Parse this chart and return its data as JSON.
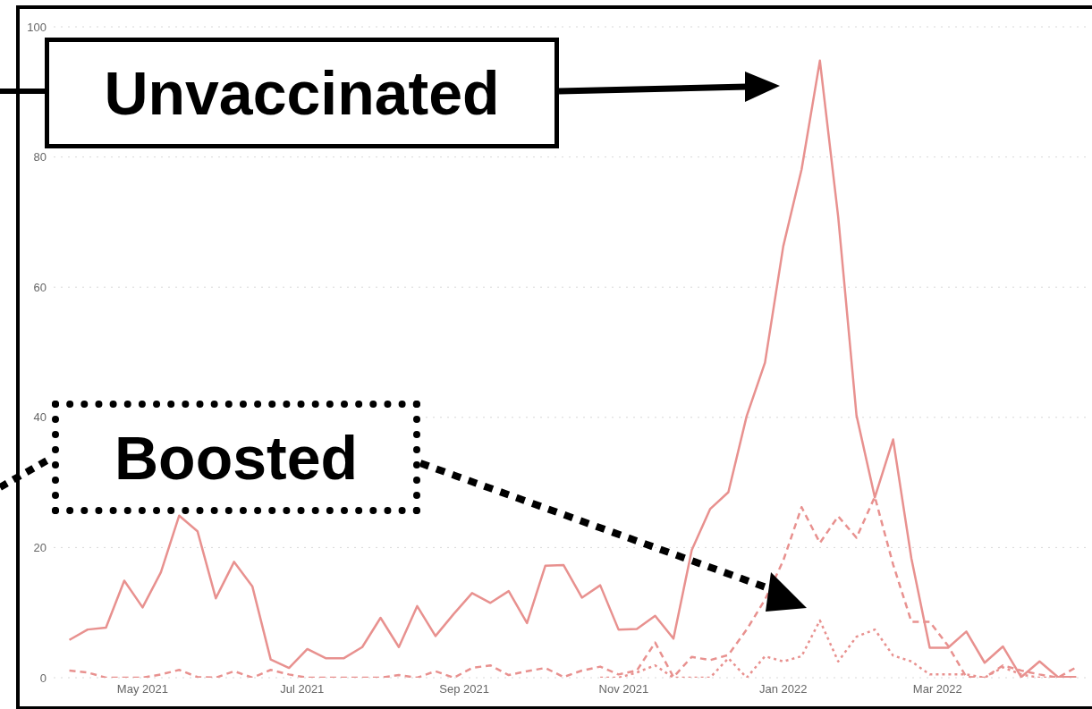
{
  "chart_data": {
    "type": "line",
    "x": [
      "2021-04-03",
      "2021-04-10",
      "2021-04-17",
      "2021-04-24",
      "2021-05-01",
      "2021-05-08",
      "2021-05-15",
      "2021-05-22",
      "2021-05-29",
      "2021-06-05",
      "2021-06-12",
      "2021-06-19",
      "2021-06-26",
      "2021-07-03",
      "2021-07-10",
      "2021-07-17",
      "2021-07-24",
      "2021-07-31",
      "2021-08-07",
      "2021-08-14",
      "2021-08-21",
      "2021-08-28",
      "2021-09-04",
      "2021-09-11",
      "2021-09-18",
      "2021-09-25",
      "2021-10-02",
      "2021-10-09",
      "2021-10-16",
      "2021-10-23",
      "2021-10-30",
      "2021-11-06",
      "2021-11-13",
      "2021-11-20",
      "2021-11-27",
      "2021-12-04",
      "2021-12-11",
      "2021-12-18",
      "2021-12-25",
      "2022-01-01",
      "2022-01-08",
      "2022-01-15",
      "2022-01-22",
      "2022-01-29",
      "2022-02-05",
      "2022-02-12",
      "2022-02-19",
      "2022-02-26",
      "2022-03-05",
      "2022-03-12",
      "2022-03-19",
      "2022-03-26",
      "2022-04-02",
      "2022-04-09",
      "2022-04-16",
      "2022-04-23"
    ],
    "series": [
      {
        "color": "#e8918f",
        "line_style": "solid",
        "values": [
          5.8,
          7.4,
          7.7,
          14.9,
          10.8,
          16.2,
          24.9,
          22.5,
          12.2,
          17.8,
          14.0,
          2.8,
          1.5,
          4.4,
          3.0,
          3.0,
          4.7,
          9.2,
          4.7,
          11.0,
          6.4,
          9.8,
          13.0,
          11.5,
          13.3,
          8.4,
          17.2,
          17.3,
          12.3,
          14.2,
          7.4,
          7.5,
          9.5,
          6.0,
          19.6,
          25.9,
          28.5,
          40.2,
          48.4,
          66.3,
          78.1,
          94.8,
          70.8,
          40.3,
          27.7,
          36.6,
          18.3,
          4.6,
          4.6,
          7.1,
          2.3,
          4.8,
          0.1,
          2.5,
          0.1,
          0.1
        ]
      },
      {
        "color": "#e8918f",
        "line_style": "dashed",
        "values": [
          1.1,
          0.8,
          0,
          0,
          0,
          0.5,
          1.2,
          0.1,
          0,
          1.0,
          0,
          1.2,
          0.5,
          0,
          0,
          0,
          0,
          0,
          0.4,
          0,
          1.0,
          0,
          1.5,
          1.9,
          0.4,
          1.0,
          1.5,
          0.1,
          1.1,
          1.7,
          0.5,
          1.1,
          5.4,
          0.1,
          3.2,
          2.7,
          3.5,
          7.4,
          12.0,
          18.0,
          26.2,
          20.7,
          24.8,
          21.5,
          27.8,
          17.4,
          8.6,
          8.6,
          4.9,
          0.1,
          0,
          1.9,
          1.1,
          0.5,
          0,
          1.6
        ]
      },
      {
        "color": "#e8918f",
        "line_style": "dotted",
        "values": [
          null,
          null,
          null,
          null,
          null,
          null,
          null,
          null,
          null,
          null,
          null,
          null,
          null,
          null,
          null,
          null,
          null,
          null,
          null,
          null,
          null,
          null,
          null,
          null,
          null,
          null,
          null,
          null,
          null,
          0,
          0,
          0.8,
          1.9,
          0,
          0,
          0,
          3.0,
          0,
          3.3,
          2.5,
          3.3,
          8.8,
          2.5,
          6.3,
          7.4,
          3.4,
          2.5,
          0.5,
          0.5,
          0.5,
          0,
          1.6,
          0.5,
          0,
          0,
          0
        ]
      }
    ],
    "xlim": [
      "2021-03-28",
      "2022-04-27"
    ],
    "xticks": [
      {
        "value": "2021-05-01",
        "label": "May 2021"
      },
      {
        "value": "2021-07-01",
        "label": "Jul 2021"
      },
      {
        "value": "2021-09-01",
        "label": "Sep 2021"
      },
      {
        "value": "2021-11-01",
        "label": "Nov 2021"
      },
      {
        "value": "2022-01-01",
        "label": "Jan 2022"
      },
      {
        "value": "2022-03-01",
        "label": "Mar 2022"
      }
    ],
    "ylim": [
      0,
      100
    ],
    "yticks": [
      0,
      20,
      40,
      60,
      80,
      100
    ],
    "grid": "y",
    "annotations": [
      "Unvaccinated",
      "Boosted"
    ]
  }
}
